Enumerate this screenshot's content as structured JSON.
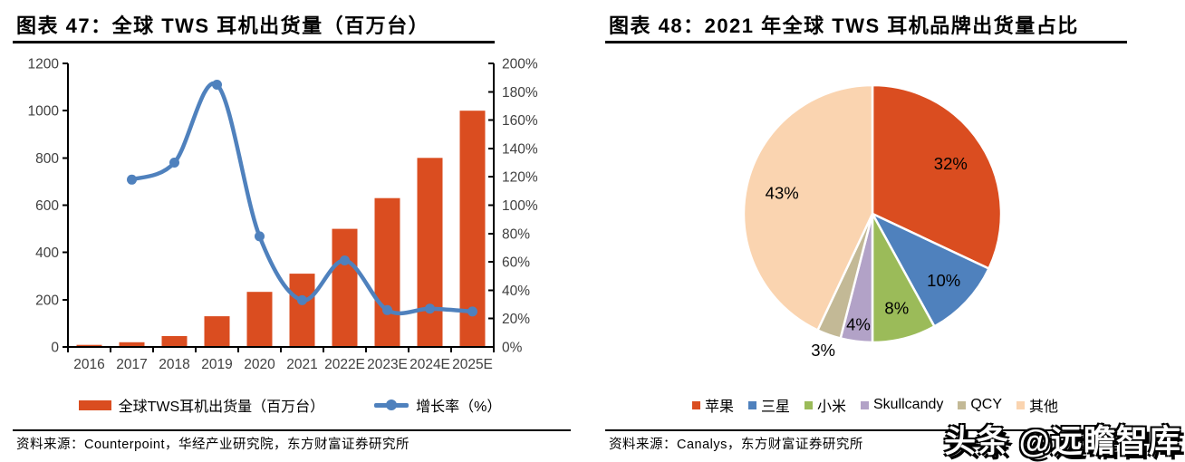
{
  "watermark": "头条 @远瞻智库",
  "left_panel": {
    "title": "图表 47：全球 TWS 耳机出货量（百万台）",
    "source": "资料来源：Counterpoint，华经产业研究院，东方财富证券研究所"
  },
  "right_panel": {
    "title": "图表 48：2021 年全球 TWS 耳机品牌出货量占比",
    "source": "资料来源：Canalys，东方财富证券研究所"
  },
  "chart_data": [
    {
      "type": "bar+line",
      "title": "全球TWS耳机出货量（百万台）",
      "categories": [
        "2016",
        "2017",
        "2018",
        "2019",
        "2020",
        "2021",
        "2022E",
        "2023E",
        "2024E",
        "2025E"
      ],
      "series": [
        {
          "name": "全球TWS耳机出货量（百万台）",
          "type": "bar",
          "axis": "left",
          "color": "#DA4D20",
          "values": [
            9,
            20,
            46,
            130,
            233,
            310,
            500,
            630,
            800,
            1000
          ]
        },
        {
          "name": "增长率（%）",
          "type": "line",
          "axis": "right",
          "color": "#4F81BD",
          "values": [
            null,
            118,
            130,
            185,
            78,
            33,
            61,
            26,
            27,
            25
          ]
        }
      ],
      "left_axis": {
        "min": 0,
        "max": 1200,
        "step": 200,
        "ticks": [
          0,
          200,
          400,
          600,
          800,
          1000,
          1200
        ]
      },
      "right_axis": {
        "min": 0,
        "max": 200,
        "step": 20,
        "suffix": "%",
        "ticks": [
          "0%",
          "20%",
          "40%",
          "60%",
          "80%",
          "100%",
          "120%",
          "140%",
          "160%",
          "180%",
          "200%"
        ]
      },
      "grid": false,
      "legend_position": "bottom",
      "tick_label_color": "#404040"
    },
    {
      "type": "pie",
      "title": "2021年全球TWS耳机品牌出货量占比",
      "start_angle_deg": 0,
      "direction": "clockwise",
      "slices": [
        {
          "label": "苹果",
          "value": 32,
          "color": "#DA4D20"
        },
        {
          "label": "三星",
          "value": 10,
          "color": "#4F81BD"
        },
        {
          "label": "小米",
          "value": 8,
          "color": "#9BBB59"
        },
        {
          "label": "Skullcandy",
          "value": 4,
          "color": "#B2A2C7"
        },
        {
          "label": "QCY",
          "value": 3,
          "color": "#C3B996"
        },
        {
          "label": "其他",
          "value": 43,
          "color": "#FAD4B0"
        }
      ],
      "label_format": "value%",
      "legend_position": "bottom"
    }
  ]
}
